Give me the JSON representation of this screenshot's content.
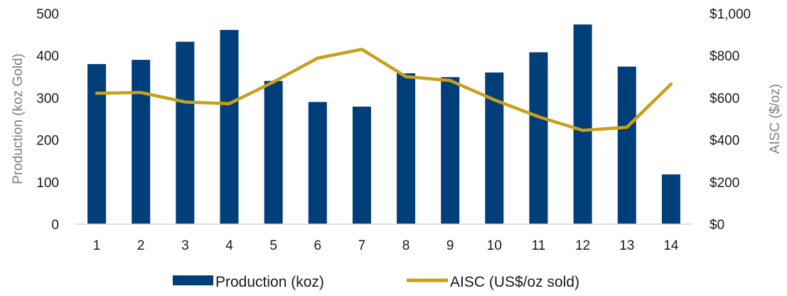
{
  "chart_data": {
    "type": "bar",
    "categories": [
      "1",
      "2",
      "3",
      "4",
      "5",
      "6",
      "7",
      "8",
      "9",
      "10",
      "11",
      "12",
      "13",
      "14"
    ],
    "series": [
      {
        "name": "Production (koz)",
        "type": "bar",
        "axis": "left",
        "color": "#003f7a",
        "values": [
          380,
          390,
          433,
          461,
          340,
          290,
          279,
          358,
          349,
          360,
          408,
          474,
          374,
          118
        ]
      },
      {
        "name": "AISC (US$/oz sold)",
        "type": "line",
        "axis": "right",
        "color": "#c9a019",
        "values": [
          621,
          625,
          580,
          572,
          675,
          788,
          830,
          700,
          682,
          590,
          510,
          445,
          460,
          665
        ]
      }
    ],
    "ylabel": "Production (koz Gold)",
    "y2label": "AISC ($/oz)",
    "ylim": [
      0,
      500
    ],
    "y2lim": [
      0,
      1000
    ],
    "yticks": [
      "0",
      "100",
      "200",
      "300",
      "400",
      "500"
    ],
    "y2ticks": [
      "$0",
      "$200",
      "$400",
      "$600",
      "$800",
      "$1,000"
    ],
    "grid": false,
    "legend_position": "bottom"
  }
}
